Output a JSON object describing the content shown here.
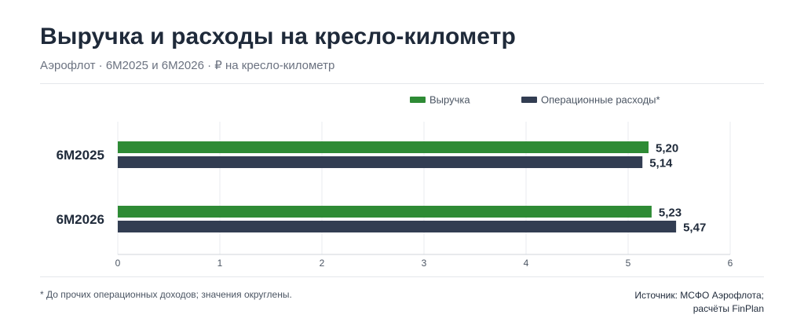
{
  "header": {
    "title": "Выручка и расходы на кресло-километр",
    "subtitle": "Аэрофлот · 6М2025 и 6М2026 · ₽ на кресло-километр"
  },
  "colors": {
    "revenue": "#2e8b35",
    "expenses": "#323d52",
    "grid": "#e9ebef",
    "axis": "#d1d5db"
  },
  "chart_data": {
    "type": "bar",
    "orientation": "horizontal",
    "categories": [
      "6М2025",
      "6М2026"
    ],
    "series": [
      {
        "name": "Выручка",
        "values": [
          5.2,
          5.23
        ],
        "labels": [
          "5,20",
          "5,23"
        ]
      },
      {
        "name": "Операционные расходы*",
        "values": [
          5.14,
          5.47
        ],
        "labels": [
          "5,14",
          "5,47"
        ]
      }
    ],
    "xlim": [
      0,
      6
    ],
    "xticks": [
      "0",
      "1",
      "2",
      "3",
      "4",
      "5",
      "6"
    ],
    "grid": true,
    "legend_position": "top-right"
  },
  "footer": {
    "footnote": "* До прочих операционных доходов; значения округлены.",
    "source_line1": "Источник: МСФО Аэрофлота;",
    "source_line2": "расчёты FinPlan"
  }
}
